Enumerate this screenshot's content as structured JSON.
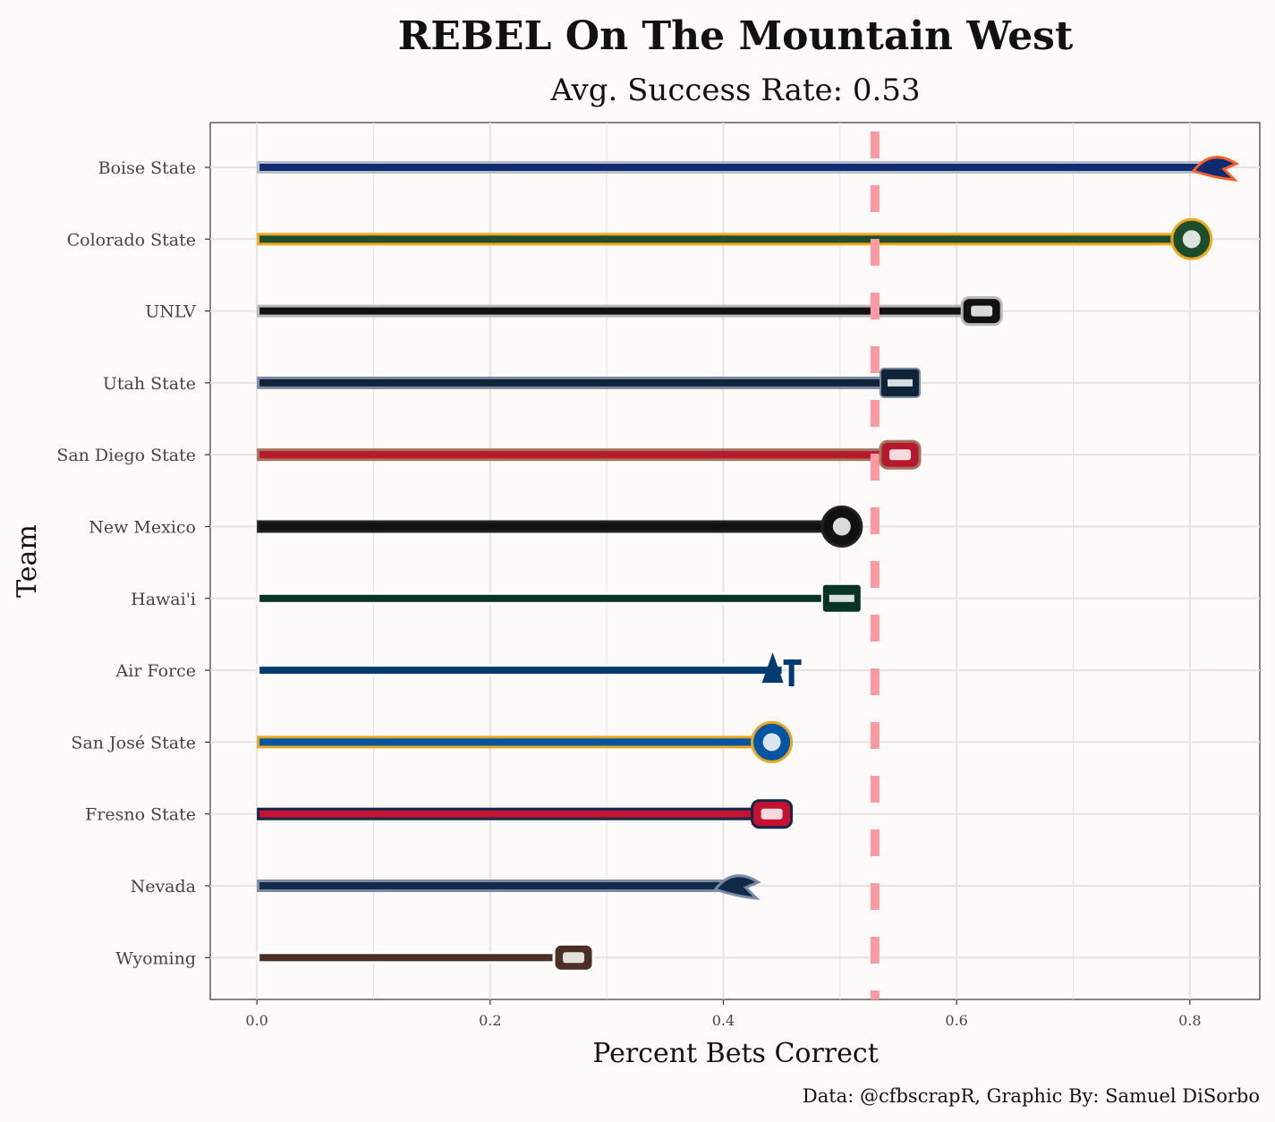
{
  "title": "REBEL On The Mountain West",
  "subtitle": "Avg. Success Rate: 0.53",
  "caption": "Data: @cfbscrapR, Graphic By: Samuel DiSorbo",
  "colors": {
    "background": "#fffafa",
    "grid": "#e3e3e3",
    "reference_line": "#ff9aa2"
  },
  "chart_data": {
    "type": "bar",
    "orientation": "horizontal",
    "xlabel": "Percent Bets Correct",
    "ylabel": "Team",
    "xlim": [
      -0.04,
      0.86
    ],
    "xticks": [
      "0.0",
      "0.2",
      "0.4",
      "0.6",
      "0.8"
    ],
    "grid": true,
    "reference_line": {
      "x": 0.53,
      "style": "dashed"
    },
    "categories": [
      "Boise State",
      "Colorado State",
      "UNLV",
      "Utah State",
      "San Diego State",
      "New Mexico",
      "Hawai'i",
      "Air Force",
      "San José State",
      "Fresno State",
      "Nevada",
      "Wyoming"
    ],
    "values": [
      0.82,
      0.8,
      0.62,
      0.55,
      0.55,
      0.5,
      0.5,
      0.45,
      0.44,
      0.44,
      0.41,
      0.27
    ],
    "bar_colors": [
      "#0f2a6e",
      "#1e4d2b",
      "#111111",
      "#0f2439",
      "#b5182f",
      "#111111",
      "#0a3422",
      "#003a70",
      "#0055a2",
      "#c41230",
      "#0f2a4a",
      "#492f24"
    ],
    "bar_outline_colors": [
      "#b6bccb",
      "#f0a81c",
      "#b9b9b9",
      "#7b8aa0",
      "#a3745a",
      "#222222",
      "#ffffff",
      "#ffffff",
      "#e5a823",
      "#13284c",
      "#7b8aa0",
      "#ffffff"
    ],
    "logo_icons": [
      "boise-state-logo",
      "colorado-state-logo",
      "unlv-logo",
      "utah-state-logo",
      "san-diego-state-logo",
      "new-mexico-logo",
      "hawaii-logo",
      "air-force-logo",
      "san-jose-state-logo",
      "fresno-state-logo",
      "nevada-logo",
      "wyoming-logo"
    ]
  }
}
